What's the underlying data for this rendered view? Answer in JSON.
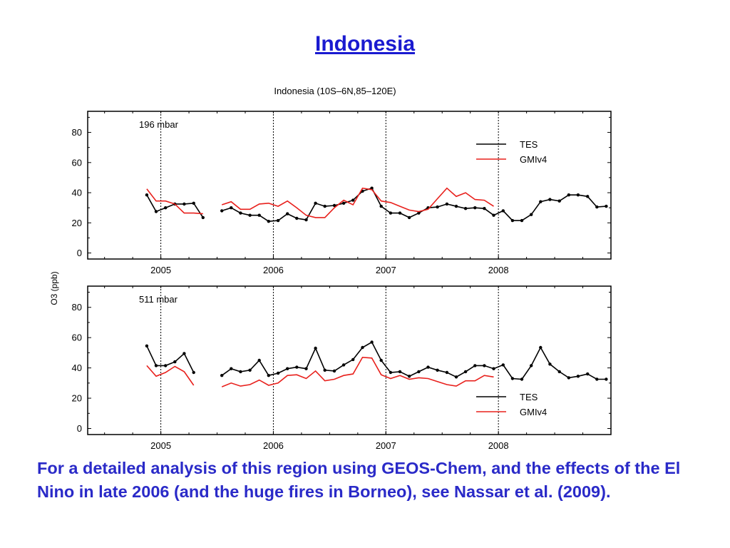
{
  "slide": {
    "title": "Indonesia",
    "caption": "For a detailed analysis of this region using GEOS-Chem, and the effects of the El Nino in late 2006 (and the huge fires in Borneo), see Nassar et al. (2009)."
  },
  "chart_data": {
    "type": "line",
    "title": "Indonesia (10S–6N,85–120E)",
    "ylabel": "O3 (ppb)",
    "xlim": [
      2004.35,
      2009.0
    ],
    "ylim": [
      -4,
      94
    ],
    "yticks": [
      0,
      20,
      40,
      60,
      80
    ],
    "xticks": [
      2005,
      2006,
      2007,
      2008
    ],
    "xtick_labels": [
      "2005",
      "2006",
      "2007",
      "2008"
    ],
    "vlines": [
      2005,
      2006,
      2007,
      2008,
      2009
    ],
    "grid": false,
    "colors": {
      "TES": "#000000",
      "GMIv4": "#e8201c"
    },
    "panels": [
      {
        "label": "196 mbar",
        "legend": [
          "TES",
          "GMIv4"
        ],
        "legend_position": "upper-right",
        "series": [
          {
            "name": "TES",
            "segments": [
              [
                [
                  2004.875,
                  38.5
                ],
                [
                  2004.958,
                  27.5
                ],
                [
                  2005.042,
                  30
                ],
                [
                  2005.125,
                  32.5
                ],
                [
                  2005.208,
                  32.5
                ],
                [
                  2005.292,
                  33
                ],
                [
                  2005.375,
                  23.5
                ]
              ],
              [
                [
                  2005.542,
                  28
                ],
                [
                  2005.625,
                  30
                ],
                [
                  2005.708,
                  26.5
                ],
                [
                  2005.792,
                  25
                ],
                [
                  2005.875,
                  25
                ],
                [
                  2005.958,
                  21
                ],
                [
                  2006.042,
                  21.5
                ],
                [
                  2006.125,
                  26
                ],
                [
                  2006.208,
                  23
                ],
                [
                  2006.292,
                  22
                ],
                [
                  2006.375,
                  33
                ],
                [
                  2006.458,
                  31
                ],
                [
                  2006.542,
                  31.5
                ],
                [
                  2006.625,
                  33
                ],
                [
                  2006.708,
                  35
                ],
                [
                  2006.792,
                  41
                ],
                [
                  2006.875,
                  43
                ],
                [
                  2006.958,
                  31
                ],
                [
                  2007.042,
                  26.5
                ],
                [
                  2007.125,
                  26.5
                ],
                [
                  2007.208,
                  23.5
                ],
                [
                  2007.292,
                  26.5
                ],
                [
                  2007.375,
                  30
                ],
                [
                  2007.458,
                  30.5
                ],
                [
                  2007.542,
                  32.5
                ],
                [
                  2007.625,
                  31
                ],
                [
                  2007.708,
                  29.5
                ],
                [
                  2007.792,
                  30
                ],
                [
                  2007.875,
                  29.5
                ],
                [
                  2007.958,
                  25
                ],
                [
                  2008.042,
                  28
                ],
                [
                  2008.125,
                  21.5
                ],
                [
                  2008.208,
                  21.5
                ],
                [
                  2008.292,
                  25.5
                ],
                [
                  2008.375,
                  34
                ],
                [
                  2008.458,
                  35.5
                ],
                [
                  2008.542,
                  34.5
                ],
                [
                  2008.625,
                  38.5
                ],
                [
                  2008.708,
                  38.5
                ],
                [
                  2008.792,
                  37.5
                ],
                [
                  2008.875,
                  30.5
                ],
                [
                  2008.958,
                  31
                ]
              ]
            ]
          },
          {
            "name": "GMIv4",
            "segments": [
              [
                [
                  2004.875,
                  42.5
                ],
                [
                  2004.958,
                  34.5
                ],
                [
                  2005.042,
                  34.5
                ],
                [
                  2005.125,
                  32.5
                ],
                [
                  2005.208,
                  26.5
                ],
                [
                  2005.292,
                  26.5
                ],
                [
                  2005.375,
                  26
                ]
              ],
              [
                [
                  2005.542,
                  32
                ],
                [
                  2005.625,
                  34
                ],
                [
                  2005.708,
                  29
                ],
                [
                  2005.792,
                  29
                ],
                [
                  2005.875,
                  32.5
                ],
                [
                  2005.958,
                  33
                ],
                [
                  2006.042,
                  31
                ],
                [
                  2006.125,
                  34.5
                ],
                [
                  2006.208,
                  30
                ],
                [
                  2006.292,
                  25
                ],
                [
                  2006.375,
                  23.5
                ],
                [
                  2006.458,
                  23.5
                ],
                [
                  2006.542,
                  30
                ],
                [
                  2006.625,
                  35
                ],
                [
                  2006.708,
                  32
                ],
                [
                  2006.792,
                  43
                ],
                [
                  2006.875,
                  42
                ],
                [
                  2006.958,
                  34.5
                ],
                [
                  2007.042,
                  33.5
                ],
                [
                  2007.125,
                  31
                ],
                [
                  2007.208,
                  28.5
                ],
                [
                  2007.292,
                  27.5
                ],
                [
                  2007.375,
                  29
                ],
                [
                  2007.458,
                  36
                ],
                [
                  2007.542,
                  43
                ],
                [
                  2007.625,
                  37.5
                ],
                [
                  2007.708,
                  40
                ],
                [
                  2007.792,
                  35.5
                ],
                [
                  2007.875,
                  35
                ],
                [
                  2007.958,
                  31
                ]
              ]
            ]
          }
        ]
      },
      {
        "label": "511 mbar",
        "legend": [
          "TES",
          "GMIv4"
        ],
        "legend_position": "lower-right",
        "series": [
          {
            "name": "TES",
            "segments": [
              [
                [
                  2004.875,
                  54.5
                ],
                [
                  2004.958,
                  41.5
                ],
                [
                  2005.042,
                  41.5
                ],
                [
                  2005.125,
                  44
                ],
                [
                  2005.208,
                  49.5
                ],
                [
                  2005.292,
                  37
                ]
              ],
              [
                [
                  2005.542,
                  35
                ],
                [
                  2005.625,
                  39.5
                ],
                [
                  2005.708,
                  37.5
                ],
                [
                  2005.792,
                  38.5
                ],
                [
                  2005.875,
                  45
                ],
                [
                  2005.958,
                  35
                ],
                [
                  2006.042,
                  36.5
                ],
                [
                  2006.125,
                  39.5
                ],
                [
                  2006.208,
                  40.5
                ],
                [
                  2006.292,
                  39.5
                ],
                [
                  2006.375,
                  53
                ],
                [
                  2006.458,
                  38.5
                ],
                [
                  2006.542,
                  38
                ],
                [
                  2006.625,
                  42
                ],
                [
                  2006.708,
                  45.5
                ],
                [
                  2006.792,
                  53.5
                ],
                [
                  2006.875,
                  57
                ],
                [
                  2006.958,
                  45
                ],
                [
                  2007.042,
                  37
                ],
                [
                  2007.125,
                  37.5
                ],
                [
                  2007.208,
                  34.5
                ],
                [
                  2007.292,
                  37.5
                ],
                [
                  2007.375,
                  40.5
                ],
                [
                  2007.458,
                  38.5
                ],
                [
                  2007.542,
                  37
                ],
                [
                  2007.625,
                  34
                ],
                [
                  2007.708,
                  37.5
                ],
                [
                  2007.792,
                  41.5
                ],
                [
                  2007.875,
                  41.5
                ],
                [
                  2007.958,
                  39.5
                ],
                [
                  2008.042,
                  42
                ],
                [
                  2008.125,
                  33
                ],
                [
                  2008.208,
                  32.5
                ],
                [
                  2008.292,
                  41.5
                ],
                [
                  2008.375,
                  53.5
                ],
                [
                  2008.458,
                  42.5
                ],
                [
                  2008.542,
                  37.5
                ],
                [
                  2008.625,
                  33.5
                ],
                [
                  2008.708,
                  34.5
                ],
                [
                  2008.792,
                  36
                ],
                [
                  2008.875,
                  32.5
                ],
                [
                  2008.958,
                  32.5
                ]
              ]
            ]
          },
          {
            "name": "GMIv4",
            "segments": [
              [
                [
                  2004.875,
                  41.5
                ],
                [
                  2004.958,
                  34.5
                ],
                [
                  2005.042,
                  37
                ],
                [
                  2005.125,
                  41
                ],
                [
                  2005.208,
                  37.5
                ],
                [
                  2005.292,
                  28.5
                ]
              ],
              [
                [
                  2005.542,
                  27.5
                ],
                [
                  2005.625,
                  30
                ],
                [
                  2005.708,
                  28
                ],
                [
                  2005.792,
                  29
                ],
                [
                  2005.875,
                  32
                ],
                [
                  2005.958,
                  28.5
                ],
                [
                  2006.042,
                  30
                ],
                [
                  2006.125,
                  35
                ],
                [
                  2006.208,
                  35.5
                ],
                [
                  2006.292,
                  33
                ],
                [
                  2006.375,
                  38
                ],
                [
                  2006.458,
                  31.5
                ],
                [
                  2006.542,
                  32.5
                ],
                [
                  2006.625,
                  35
                ],
                [
                  2006.708,
                  36
                ],
                [
                  2006.792,
                  47
                ],
                [
                  2006.875,
                  46.5
                ],
                [
                  2006.958,
                  35.5
                ],
                [
                  2007.042,
                  33
                ],
                [
                  2007.125,
                  35
                ],
                [
                  2007.208,
                  32.5
                ],
                [
                  2007.292,
                  33.5
                ],
                [
                  2007.375,
                  33
                ],
                [
                  2007.458,
                  31
                ],
                [
                  2007.542,
                  29
                ],
                [
                  2007.625,
                  28
                ],
                [
                  2007.708,
                  31.5
                ],
                [
                  2007.792,
                  31.5
                ],
                [
                  2007.875,
                  35
                ],
                [
                  2007.958,
                  34
                ]
              ]
            ]
          }
        ]
      }
    ]
  }
}
